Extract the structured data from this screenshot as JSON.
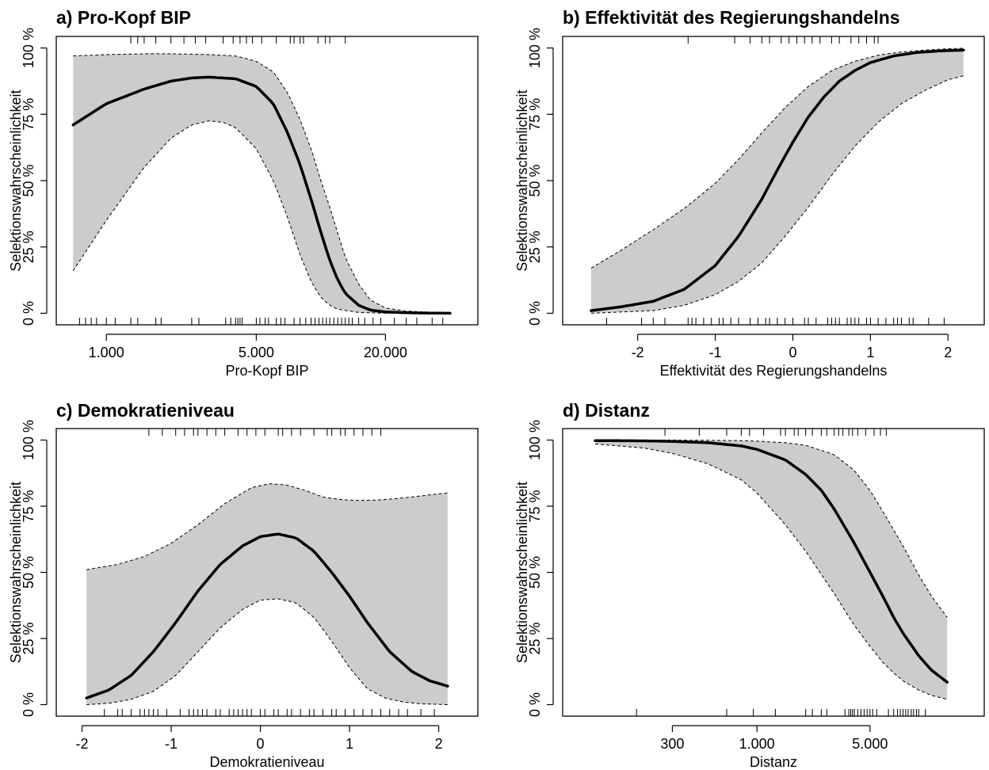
{
  "colors": {
    "band": "#cccccc",
    "line": "#000000",
    "background": "#ffffff"
  },
  "chart_data": [
    {
      "type": "line",
      "title": "a) Pro-Kopf BIP",
      "xlabel": "Pro-Kopf BIP",
      "ylabel": "Selektionswahrscheinlichkeit",
      "xscale": "log",
      "xlim": [
        700,
        45000
      ],
      "ylim": [
        0,
        100
      ],
      "xticks": [
        {
          "v": 1000,
          "label": "1.000"
        },
        {
          "v": 5000,
          "label": "5.000"
        },
        {
          "v": 20000,
          "label": "20.000"
        }
      ],
      "yticks": [
        {
          "v": 0,
          "label": "0 %"
        },
        {
          "v": 25,
          "label": "25 %"
        },
        {
          "v": 50,
          "label": "50 %"
        },
        {
          "v": 75,
          "label": "75 %"
        },
        {
          "v": 100,
          "label": "100 %"
        }
      ],
      "series": [
        {
          "role": "estimate",
          "x": [
            700,
            1000,
            1500,
            2000,
            2500,
            3000,
            4000,
            5000,
            6000,
            7000,
            8000,
            9000,
            10000,
            11000,
            12000,
            13000,
            15000,
            17000,
            20000,
            25000,
            30000,
            40000
          ],
          "values": [
            71,
            79,
            84.5,
            87.5,
            88.7,
            89,
            88.4,
            85.5,
            79,
            68,
            56,
            43,
            30.5,
            20,
            12.5,
            7.5,
            3,
            1.2,
            0.5,
            0.2,
            0.1,
            0
          ]
        },
        {
          "role": "upper",
          "x": [
            700,
            1000,
            1500,
            2000,
            3000,
            4000,
            5000,
            6000,
            7000,
            8000,
            9000,
            10000,
            11000,
            12000,
            13000,
            15000,
            17000,
            20000,
            25000,
            30000,
            40000
          ],
          "values": [
            97,
            97.5,
            97.8,
            97.8,
            97.5,
            97,
            95,
            91,
            83,
            73,
            62,
            50,
            40,
            30,
            21,
            11,
            5,
            2,
            0.8,
            0.5,
            0.2
          ]
        },
        {
          "role": "lower",
          "x": [
            700,
            1000,
            1500,
            2000,
            2500,
            3000,
            3500,
            4000,
            5000,
            6000,
            7000,
            8000,
            9000,
            10000,
            11000,
            12000,
            15000,
            20000,
            25000,
            40000
          ],
          "values": [
            16,
            35,
            55,
            66,
            71,
            72.5,
            72,
            70,
            62,
            50,
            36,
            22,
            12,
            6,
            3,
            1.5,
            0.3,
            0,
            0,
            0
          ]
        }
      ],
      "rug_bottom": [
        750,
        800,
        850,
        900,
        1000,
        1100,
        1300,
        1400,
        1700,
        1800,
        2500,
        2700,
        3600,
        3800,
        4000,
        4100,
        4200,
        4300,
        5000,
        5200,
        5500,
        5700,
        6200,
        6500,
        6800,
        7500,
        8000,
        8500,
        9000,
        9400,
        9800,
        10200,
        10600,
        11000,
        11500,
        12000,
        12500,
        13000,
        13500,
        14000,
        15000,
        16000,
        17500,
        19000,
        22000,
        25000,
        28000,
        33000,
        37000
      ],
      "rug_top": [
        1300,
        1400,
        1500,
        1700,
        2000,
        2300,
        2600,
        2900,
        3500,
        3900,
        4200,
        4500,
        4800,
        5300,
        6200,
        7200,
        7500,
        8000,
        8300,
        9700,
        10500,
        11000,
        13000
      ]
    },
    {
      "type": "line",
      "title": "b) Effektivität des Regierungshandelns",
      "xlabel": "Effektivität des Regierungshandelns",
      "ylabel": "Selektionswahrscheinlichkeit",
      "xscale": "linear",
      "xlim": [
        -2.75,
        2.25
      ],
      "ylim": [
        0,
        100
      ],
      "xticks": [
        {
          "v": -2,
          "label": "-2"
        },
        {
          "v": -1,
          "label": "-1"
        },
        {
          "v": 0,
          "label": "0"
        },
        {
          "v": 1,
          "label": "1"
        },
        {
          "v": 2,
          "label": "2"
        }
      ],
      "yticks": [
        {
          "v": 0,
          "label": "0 %"
        },
        {
          "v": 25,
          "label": "25 %"
        },
        {
          "v": 50,
          "label": "50 %"
        },
        {
          "v": 75,
          "label": "75 %"
        },
        {
          "v": 100,
          "label": "100 %"
        }
      ],
      "series": [
        {
          "role": "estimate",
          "x": [
            -2.6,
            -2.2,
            -1.8,
            -1.4,
            -1.0,
            -0.7,
            -0.4,
            -0.2,
            0.0,
            0.2,
            0.4,
            0.6,
            0.8,
            1.0,
            1.3,
            1.6,
            1.9,
            2.2
          ],
          "values": [
            1,
            2.5,
            4.5,
            9,
            18,
            29,
            43,
            54,
            64.5,
            74,
            81.5,
            87.5,
            91.5,
            94.5,
            97,
            98.3,
            98.9,
            99.2
          ]
        },
        {
          "role": "upper",
          "x": [
            -2.6,
            -2.2,
            -1.8,
            -1.4,
            -1.0,
            -0.7,
            -0.4,
            -0.1,
            0.2,
            0.5,
            0.8,
            1.1,
            1.4,
            1.7,
            2.0,
            2.2
          ],
          "values": [
            17,
            24,
            31.5,
            39.5,
            49,
            58,
            68,
            77.5,
            85.5,
            91.5,
            95,
            97.3,
            98.5,
            99.2,
            99.7,
            99.9
          ]
        },
        {
          "role": "lower",
          "x": [
            -2.6,
            -2.2,
            -1.8,
            -1.4,
            -1.0,
            -0.7,
            -0.4,
            -0.1,
            0.2,
            0.5,
            0.8,
            1.1,
            1.4,
            1.7,
            2.0,
            2.2
          ],
          "values": [
            0,
            0.5,
            1,
            3,
            7,
            12,
            19,
            29,
            40,
            52,
            63,
            72,
            79,
            84,
            88,
            89.5
          ]
        }
      ],
      "rug_bottom": [
        -2.4,
        -1.95,
        -1.8,
        -1.65,
        -1.35,
        -1.3,
        -1.25,
        -1.15,
        -1.05,
        -0.95,
        -0.9,
        -0.8,
        -0.7,
        -0.55,
        -0.45,
        -0.35,
        -0.3,
        -0.2,
        -0.1,
        0.0,
        0.15,
        0.2,
        0.3,
        0.45,
        0.5,
        0.55,
        0.6,
        0.7,
        0.75,
        0.8,
        0.85,
        0.95,
        1.0,
        1.1,
        1.2,
        1.3,
        1.35,
        1.4,
        1.5,
        1.55,
        1.75,
        1.95
      ],
      "rug_top": [
        -1.35,
        -0.75,
        -0.55,
        -0.4,
        -0.3,
        -0.15,
        -0.05,
        0.05,
        0.15,
        0.25,
        0.35,
        0.5,
        0.6,
        0.75,
        0.85,
        0.95,
        1.05,
        1.1
      ]
    },
    {
      "type": "line",
      "title": "c) Demokratieniveau",
      "xlabel": "Demokratieniveau",
      "ylabel": "Selektionswahrscheinlichkeit",
      "xscale": "linear",
      "xlim": [
        -2.1,
        2.25
      ],
      "ylim": [
        0,
        100
      ],
      "xticks": [
        {
          "v": -2,
          "label": "-2"
        },
        {
          "v": -1,
          "label": "-1"
        },
        {
          "v": 0,
          "label": "0"
        },
        {
          "v": 1,
          "label": "1"
        },
        {
          "v": 2,
          "label": "2"
        }
      ],
      "yticks": [
        {
          "v": 0,
          "label": "0 %"
        },
        {
          "v": 25,
          "label": "25 %"
        },
        {
          "v": 50,
          "label": "50 %"
        },
        {
          "v": 75,
          "label": "75 %"
        },
        {
          "v": 100,
          "label": "100 %"
        }
      ],
      "series": [
        {
          "role": "estimate",
          "x": [
            -1.95,
            -1.7,
            -1.45,
            -1.2,
            -0.95,
            -0.7,
            -0.45,
            -0.2,
            0.0,
            0.2,
            0.4,
            0.6,
            0.8,
            1.0,
            1.2,
            1.45,
            1.7,
            1.9,
            2.1
          ],
          "values": [
            2.5,
            5.5,
            11,
            20,
            31,
            43,
            53,
            60,
            63.5,
            64.5,
            63,
            58,
            50,
            41,
            31,
            20,
            12.5,
            9,
            7
          ]
        },
        {
          "role": "upper",
          "x": [
            -1.95,
            -1.6,
            -1.3,
            -1.0,
            -0.7,
            -0.4,
            -0.1,
            0.1,
            0.3,
            0.5,
            0.7,
            0.9,
            1.1,
            1.3,
            1.5,
            1.7,
            1.9,
            2.1
          ],
          "values": [
            51,
            53,
            56,
            61,
            68,
            76,
            82,
            83.5,
            83,
            81,
            78.5,
            77.5,
            77.2,
            77.3,
            77.8,
            78.5,
            79.3,
            80
          ]
        },
        {
          "role": "lower",
          "x": [
            -1.95,
            -1.7,
            -1.45,
            -1.2,
            -0.95,
            -0.7,
            -0.45,
            -0.2,
            0.0,
            0.2,
            0.4,
            0.6,
            0.8,
            1.0,
            1.2,
            1.4,
            1.6,
            1.8,
            2.0,
            2.1
          ],
          "values": [
            0,
            0.5,
            2,
            5,
            11,
            20,
            29,
            36,
            39.5,
            40,
            38.5,
            33,
            24,
            14,
            6,
            2.5,
            1,
            0.3,
            0.1,
            0
          ]
        }
      ],
      "rug_bottom": [
        -1.75,
        -1.6,
        -1.55,
        -1.45,
        -1.35,
        -1.3,
        -1.25,
        -1.2,
        -1.15,
        -1.05,
        -0.9,
        -0.8,
        -0.75,
        -0.7,
        -0.65,
        -0.6,
        -0.5,
        -0.45,
        -0.35,
        -0.3,
        -0.25,
        -0.2,
        -0.15,
        -0.1,
        0.0,
        0.05,
        0.15,
        0.2,
        0.3,
        0.35,
        0.45,
        0.55,
        0.6,
        0.7,
        0.8,
        0.85,
        0.95,
        1.05,
        1.15,
        1.25,
        1.35,
        1.45,
        1.55,
        1.65,
        1.8,
        1.95
      ],
      "rug_top": [
        -1.25,
        -1.1,
        -0.95,
        -0.85,
        -0.75,
        -0.7,
        -0.6,
        -0.5,
        -0.4,
        -0.25,
        -0.15,
        -0.05,
        0.05,
        0.2,
        0.25,
        0.35,
        0.45,
        0.6,
        0.75,
        0.8,
        0.9,
        0.95,
        1.05,
        1.15,
        1.25,
        1.35
      ]
    },
    {
      "type": "line",
      "title": "d) Distanz",
      "xlabel": "Distanz",
      "ylabel": "Selektionswahrscheinlichkeit",
      "xscale": "log",
      "xlim": [
        80,
        20000
      ],
      "ylim": [
        0,
        100
      ],
      "xticks": [
        {
          "v": 300,
          "label": "300"
        },
        {
          "v": 1000,
          "label": "1.000"
        },
        {
          "v": 5000,
          "label": "5.000"
        }
      ],
      "yticks": [
        {
          "v": 0,
          "label": "0 %"
        },
        {
          "v": 25,
          "label": "25 %"
        },
        {
          "v": 50,
          "label": "50 %"
        },
        {
          "v": 75,
          "label": "75 %"
        },
        {
          "v": 100,
          "label": "100 %"
        }
      ],
      "series": [
        {
          "role": "estimate",
          "x": [
            100,
            200,
            300,
            500,
            800,
            1000,
            1500,
            2000,
            2500,
            3000,
            4000,
            5000,
            6000,
            7000,
            8000,
            10000,
            12000,
            15000
          ],
          "values": [
            99.8,
            99.7,
            99.5,
            99,
            97.8,
            96.5,
            92.5,
            87,
            81,
            74,
            61,
            50,
            41,
            33,
            27,
            18.5,
            13,
            8.5
          ]
        },
        {
          "role": "upper",
          "x": [
            100,
            300,
            500,
            800,
            1000,
            1500,
            2000,
            3000,
            4000,
            5000,
            6000,
            8000,
            10000,
            12000,
            15000
          ],
          "values": [
            100,
            100,
            99.9,
            99.8,
            99.6,
            99,
            98,
            94.5,
            88.5,
            81,
            73,
            60,
            49,
            41,
            33
          ]
        },
        {
          "role": "lower",
          "x": [
            100,
            200,
            300,
            500,
            800,
            1000,
            1500,
            2000,
            3000,
            4000,
            5000,
            6000,
            7000,
            8000,
            10000,
            12000,
            15000
          ],
          "values": [
            98.5,
            97,
            95,
            91,
            85,
            80,
            68,
            58,
            42,
            30,
            22,
            16,
            12,
            9,
            5.5,
            3.5,
            2
          ]
        }
      ],
      "rug_bottom": [
        180,
        650,
        950,
        1300,
        2000,
        2200,
        2500,
        2700,
        3500,
        3700,
        3800,
        3900,
        4000,
        4200,
        4400,
        4600,
        4800,
        5000,
        5200,
        5500,
        6500,
        7000,
        7400,
        7700,
        8000,
        8300,
        8600,
        9000,
        9300,
        9700,
        10000,
        11000
      ],
      "rug_top": [
        270,
        440,
        650,
        800,
        900,
        1100,
        1400,
        1500,
        1700,
        1800,
        2000,
        2200,
        2500,
        2700,
        3000,
        3200,
        3400,
        3700,
        3900,
        4200,
        4700,
        5300,
        5800,
        6300
      ]
    }
  ]
}
